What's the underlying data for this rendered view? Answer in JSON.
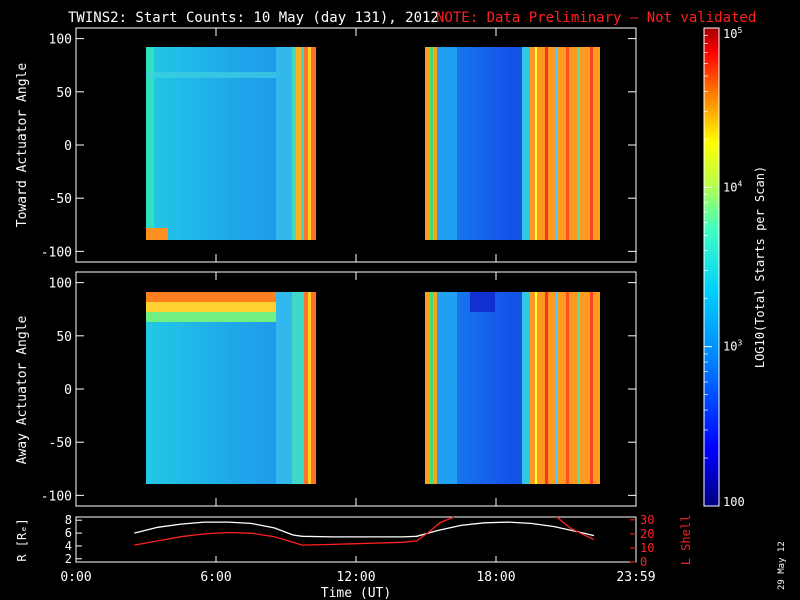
{
  "header": {
    "title": "TWINS2: Start Counts: 10 May (day 131), 2012",
    "note": "NOTE: Data Preliminary — Not validated",
    "note_color": "#ff2020"
  },
  "footer": {
    "xlabel": "Time (UT)",
    "date_stamp": "29 May 12"
  },
  "chart_data": [
    {
      "type": "heatmap",
      "ylabel": "Toward Actuator Angle",
      "ylim": [
        -110,
        110
      ],
      "yticks": [
        100,
        50,
        0,
        -50,
        -100
      ],
      "xlim": [
        0,
        24
      ],
      "xticks": [
        "0:00",
        "6:00",
        "12:00",
        "18:00",
        "23:59"
      ],
      "data_blocks": [
        {
          "t_start": 2.5,
          "t_end": 9.7,
          "angle_range": [
            -90,
            90
          ]
        },
        {
          "t_start": 14.6,
          "t_end": 22.2,
          "angle_range": [
            -90,
            90
          ]
        }
      ]
    },
    {
      "type": "heatmap",
      "ylabel": "Away Actuator Angle",
      "ylim": [
        -110,
        110
      ],
      "yticks": [
        100,
        50,
        0,
        -50,
        -100
      ],
      "xlim": [
        0,
        24
      ],
      "xticks": [
        "0:00",
        "6:00",
        "12:00",
        "18:00",
        "23:59"
      ],
      "data_blocks": [
        {
          "t_start": 2.5,
          "t_end": 9.7,
          "angle_range": [
            -90,
            90
          ]
        },
        {
          "t_start": 14.6,
          "t_end": 22.2,
          "angle_range": [
            -90,
            90
          ]
        }
      ]
    },
    {
      "type": "line",
      "xlim": [
        0,
        24
      ],
      "xticks": [
        "0:00",
        "6:00",
        "12:00",
        "18:00",
        "23:59"
      ],
      "left_axis": {
        "label": "R [Rₑ]",
        "ticks": [
          "8",
          "6",
          "4",
          "2"
        ],
        "ylim": [
          1.5,
          8.5
        ]
      },
      "right_axis": {
        "label": "L Shell",
        "ticks": [
          "30",
          "20",
          "10",
          "0"
        ],
        "ylim": [
          0,
          32
        ],
        "color": "#ff2020"
      },
      "series": [
        {
          "color": "#ffffff",
          "axis": "left",
          "x": [
            2.5,
            3.5,
            4.5,
            5.5,
            6.5,
            7.5,
            8.5,
            9.3,
            9.7,
            11,
            12,
            13,
            14,
            14.6,
            15.5,
            16.5,
            17.5,
            18.5,
            19.5,
            20.5,
            21.5,
            22.2
          ],
          "y": [
            6.0,
            6.9,
            7.4,
            7.7,
            7.7,
            7.5,
            6.8,
            5.7,
            5.5,
            5.4,
            5.4,
            5.4,
            5.4,
            5.5,
            6.4,
            7.2,
            7.6,
            7.7,
            7.5,
            7.0,
            6.2,
            5.6
          ]
        },
        {
          "color": "#ff2020",
          "axis": "right",
          "x": [
            2.5,
            3.5,
            4.5,
            5.5,
            6.5,
            7.5,
            8.5,
            9.3,
            9.7,
            11,
            12,
            13,
            14,
            14.6,
            15.1,
            15.6,
            16.2
          ],
          "y": [
            12,
            15,
            18,
            20,
            21,
            20.5,
            18,
            14,
            12,
            12.5,
            13,
            13.5,
            14,
            15,
            21,
            28,
            32
          ]
        },
        {
          "color": "#ff2020",
          "axis": "right",
          "x": [
            20.6,
            21.2,
            21.8,
            22.2
          ],
          "y": [
            32,
            24,
            19,
            16
          ]
        }
      ]
    },
    {
      "type": "colorbar",
      "label": "LOG10(Total Starts per Scan)",
      "scale": "log",
      "range": [
        100,
        100000
      ],
      "tick_labels": [
        "10^5",
        "10^4",
        "10^3",
        "100"
      ],
      "colors": [
        "#000080",
        "#0000ff",
        "#0080ff",
        "#00d0ff",
        "#40ffc0",
        "#c0ff40",
        "#ffff00",
        "#ff8000",
        "#ff0000",
        "#a00000"
      ]
    }
  ]
}
